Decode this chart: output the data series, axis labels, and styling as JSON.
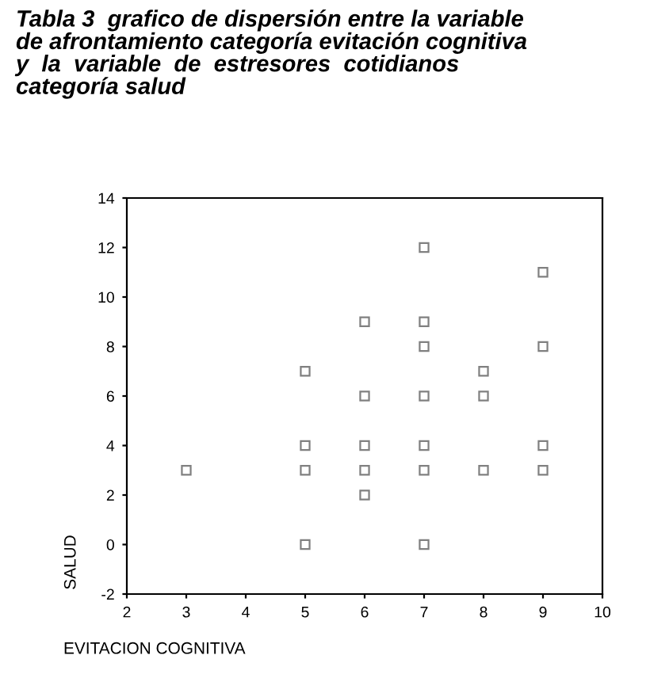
{
  "chart_data": {
    "type": "scatter",
    "title": "Tabla 3  grafico de dispersión entre la variable\nde afrontamiento categoría evitación cognitiva\ny  la  variable  de  estresores  cotidianos\ncategoría salud",
    "xlabel": "EVITACION COGNITIVA",
    "ylabel": "SALUD",
    "x": [
      3,
      5,
      5,
      5,
      5,
      6,
      6,
      6,
      6,
      6,
      7,
      7,
      7,
      7,
      7,
      7,
      7,
      8,
      8,
      8,
      9,
      9,
      9,
      9
    ],
    "values": [
      3,
      7,
      4,
      3,
      0,
      9,
      6,
      4,
      3,
      2,
      12,
      9,
      8,
      6,
      4,
      3,
      0,
      7,
      6,
      3,
      11,
      8,
      4,
      3
    ],
    "color": "#808080",
    "marker": "square",
    "xlim": [
      2,
      10
    ],
    "xticks": [
      2,
      3,
      4,
      5,
      6,
      7,
      8,
      9,
      10
    ],
    "ylim": [
      -2,
      14
    ],
    "yticks": [
      -2,
      0,
      2,
      4,
      6,
      8,
      10,
      12,
      14
    ],
    "grid": false,
    "legend": false
  }
}
